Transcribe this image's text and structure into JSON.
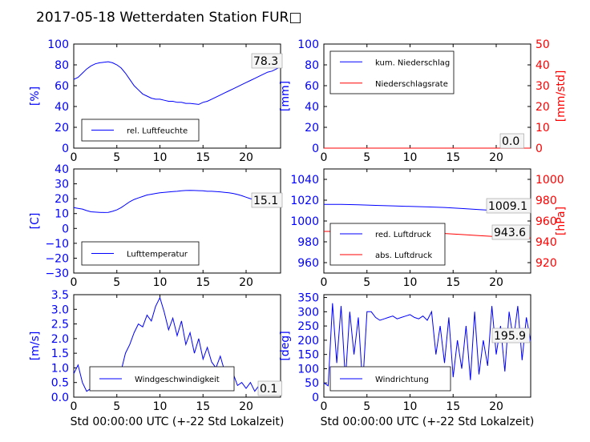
{
  "title": "2017-05-18 Wetterdaten Station FUR□",
  "colors": {
    "blue": "#0000ff",
    "red": "#ff0000",
    "black": "#000000"
  },
  "chart_data": [
    {
      "id": "humidity",
      "type": "line",
      "ylabel": "[%]",
      "xlim": [
        0,
        24
      ],
      "ylim": [
        0,
        100
      ],
      "xticks": [
        "0",
        "5",
        "10",
        "15",
        "20"
      ],
      "yticks": [
        "0",
        "20",
        "40",
        "60",
        "80",
        "100"
      ],
      "value_box": "78.3",
      "legend": "top-left-of-bottom",
      "series": [
        {
          "name": "rel. Luftfeuchte",
          "color": "#0000ff",
          "x": [
            0,
            0.5,
            1,
            1.5,
            2,
            2.5,
            3,
            3.5,
            4,
            4.5,
            5,
            5.5,
            6,
            6.5,
            7,
            7.5,
            8,
            8.5,
            9,
            9.5,
            10,
            10.5,
            11,
            11.5,
            12,
            12.5,
            13,
            13.5,
            14,
            14.5,
            15,
            15.5,
            16,
            16.5,
            17,
            17.5,
            18,
            18.5,
            19,
            19.5,
            20,
            20.5,
            21,
            21.5,
            22,
            22.5,
            23,
            23.5,
            24
          ],
          "values": [
            66,
            68,
            72,
            76,
            79,
            81,
            82,
            82.5,
            83,
            82,
            80,
            77,
            72,
            66,
            60,
            56,
            52,
            50,
            48,
            47,
            47,
            46,
            45,
            45,
            44,
            44,
            43,
            43,
            42.5,
            42,
            44,
            45,
            47,
            49,
            51,
            53,
            55,
            57,
            59,
            61,
            63,
            65,
            67,
            69,
            71,
            73,
            74,
            76,
            78.3
          ]
        }
      ]
    },
    {
      "id": "precip",
      "type": "line",
      "ylabel": "[mm]",
      "y2label": "[mm/std]",
      "xlim": [
        0,
        24
      ],
      "ylim": [
        0,
        100
      ],
      "y2lim": [
        0,
        50
      ],
      "xticks": [
        "0",
        "5",
        "10",
        "15",
        "20"
      ],
      "yticks": [
        "0",
        "20",
        "40",
        "60",
        "80",
        "100"
      ],
      "y2ticks": [
        "0",
        "10",
        "20",
        "30",
        "40",
        "50"
      ],
      "value_box": "0.0",
      "legend": "top-left",
      "series": [
        {
          "name": "kum. Niederschlag",
          "color": "#0000ff",
          "x": [
            0,
            24
          ],
          "values": [
            0,
            0
          ]
        },
        {
          "name": "Niederschlagsrate",
          "color": "#ff0000",
          "x": [
            0,
            24
          ],
          "values": [
            0,
            0
          ]
        }
      ]
    },
    {
      "id": "temperature",
      "type": "line",
      "ylabel": "[C]",
      "xlim": [
        0,
        24
      ],
      "ylim": [
        -30,
        40
      ],
      "xticks": [
        "0",
        "5",
        "10",
        "15",
        "20"
      ],
      "yticks": [
        "−30",
        "−20",
        "−10",
        "0",
        "10",
        "20",
        "30",
        "40"
      ],
      "value_box": "15.1",
      "legend": "bottom-left",
      "series": [
        {
          "name": "Lufttemperatur",
          "color": "#0000ff",
          "x": [
            0,
            0.5,
            1,
            1.5,
            2,
            2.5,
            3,
            3.5,
            4,
            4.5,
            5,
            5.5,
            6,
            6.5,
            7,
            7.5,
            8,
            8.5,
            9,
            9.5,
            10,
            10.5,
            11,
            11.5,
            12,
            12.5,
            13,
            13.5,
            14,
            14.5,
            15,
            15.5,
            16,
            16.5,
            17,
            17.5,
            18,
            18.5,
            19,
            19.5,
            20,
            20.5,
            21,
            21.5,
            22,
            22.5,
            23,
            23.5,
            24
          ],
          "values": [
            14,
            13.5,
            13,
            12,
            11.2,
            11,
            10.8,
            10.7,
            10.8,
            11.5,
            12.5,
            14,
            16,
            18,
            19.5,
            20.5,
            21.5,
            22.5,
            23,
            23.5,
            24,
            24.2,
            24.5,
            24.8,
            25,
            25.3,
            25.5,
            25.6,
            25.5,
            25.4,
            25.3,
            25,
            25,
            24.8,
            24.6,
            24.3,
            24,
            23.5,
            22.8,
            22,
            21,
            20,
            19.2,
            18.5,
            18,
            17.2,
            16.5,
            15.8,
            15.1
          ]
        }
      ]
    },
    {
      "id": "pressure",
      "type": "line",
      "y2label": "[hPa]",
      "xlim": [
        0,
        24
      ],
      "ylim": [
        950,
        1050
      ],
      "y2lim": [
        910,
        1010
      ],
      "xticks": [
        "0",
        "5",
        "10",
        "15",
        "20"
      ],
      "yticks": [
        "960",
        "980",
        "1000",
        "1020",
        "1040"
      ],
      "y2ticks": [
        "920",
        "940",
        "960",
        "980",
        "1000"
      ],
      "value_boxes": [
        "1009.1",
        "943.6"
      ],
      "legend": "bottom-left",
      "series": [
        {
          "name": "red. Luftdruck",
          "color": "#0000ff",
          "x": [
            0,
            2,
            4,
            6,
            8,
            10,
            12,
            14,
            16,
            18,
            20,
            22,
            24
          ],
          "values": [
            1016,
            1016,
            1015.5,
            1015,
            1014.5,
            1014,
            1013.5,
            1013,
            1012,
            1011,
            1010,
            1009.5,
            1009.1
          ]
        },
        {
          "name": "abs. Luftdruck",
          "color": "#ff0000",
          "x": [
            0,
            2,
            4,
            6,
            8,
            10,
            12,
            14,
            16,
            18,
            20,
            22,
            24
          ],
          "values": [
            950,
            950,
            950,
            950,
            950,
            949.5,
            949,
            948,
            947,
            946,
            945,
            944,
            943.6
          ]
        }
      ]
    },
    {
      "id": "wind",
      "type": "line",
      "ylabel": "[m/s]",
      "xlabel": "Std 00:00:00 UTC (+-22 Std Lokalzeit)",
      "xlim": [
        0,
        24
      ],
      "ylim": [
        0,
        3.5
      ],
      "xticks": [
        "0",
        "5",
        "10",
        "15",
        "20"
      ],
      "yticks": [
        "0.0",
        "0.5",
        "1.0",
        "1.5",
        "2.0",
        "2.5",
        "3.0",
        "3.5"
      ],
      "value_box": "0.1",
      "legend": "bottom-center",
      "series": [
        {
          "name": "Windgeschwindigkeit",
          "color": "#0000ff",
          "x": [
            0,
            0.5,
            1,
            1.5,
            2,
            2.5,
            3,
            3.5,
            4,
            4.5,
            5,
            5.5,
            6,
            6.5,
            7,
            7.5,
            8,
            8.5,
            9,
            9.5,
            10,
            10.5,
            11,
            11.5,
            12,
            12.5,
            13,
            13.5,
            14,
            14.5,
            15,
            15.5,
            16,
            16.5,
            17,
            17.5,
            18,
            18.5,
            19,
            19.5,
            20,
            20.5,
            21,
            21.5,
            22,
            22.5,
            23,
            23.5,
            24
          ],
          "values": [
            0.8,
            1.1,
            0.5,
            0.2,
            0.3,
            0.4,
            0.3,
            0.5,
            0.4,
            0.6,
            0.7,
            0.9,
            1.5,
            1.8,
            2.2,
            2.5,
            2.4,
            2.8,
            2.6,
            3.1,
            3.4,
            2.9,
            2.3,
            2.7,
            2.1,
            2.6,
            1.8,
            2.2,
            1.5,
            2.0,
            1.3,
            1.7,
            1.2,
            1.0,
            1.4,
            0.9,
            0.6,
            0.8,
            0.4,
            0.5,
            0.3,
            0.5,
            0.2,
            0.4,
            0.3,
            0.2,
            0.3,
            0.2,
            0.1
          ]
        }
      ]
    },
    {
      "id": "direction",
      "type": "line",
      "ylabel": "[deg]",
      "xlabel": "Std 00:00:00 UTC (+-22 Std Lokalzeit)",
      "xlim": [
        0,
        24
      ],
      "ylim": [
        0,
        360
      ],
      "xticks": [
        "0",
        "5",
        "10",
        "15",
        "20"
      ],
      "yticks": [
        "0",
        "50",
        "100",
        "150",
        "200",
        "250",
        "300",
        "350"
      ],
      "value_box": "195.9",
      "legend": "bottom-left",
      "series": [
        {
          "name": "Windrichtung",
          "color": "#0000ff",
          "x": [
            0,
            0.5,
            1,
            1.5,
            2,
            2.5,
            3,
            3.5,
            4,
            4.5,
            5,
            5.5,
            6,
            6.5,
            7,
            7.5,
            8,
            8.5,
            9,
            9.5,
            10,
            10.5,
            11,
            11.5,
            12,
            12.5,
            13,
            13.5,
            14,
            14.5,
            15,
            15.5,
            16,
            16.5,
            17,
            17.5,
            18,
            18.5,
            19,
            19.5,
            20,
            20.5,
            21,
            21.5,
            22,
            22.5,
            23,
            23.5,
            24
          ],
          "values": [
            50,
            40,
            330,
            120,
            320,
            60,
            300,
            150,
            280,
            40,
            300,
            300,
            280,
            270,
            275,
            280,
            285,
            275,
            280,
            285,
            290,
            280,
            275,
            285,
            270,
            300,
            150,
            250,
            120,
            280,
            70,
            200,
            100,
            250,
            60,
            300,
            80,
            200,
            110,
            320,
            150,
            250,
            90,
            300,
            200,
            320,
            130,
            280,
            195.9
          ]
        }
      ]
    }
  ]
}
